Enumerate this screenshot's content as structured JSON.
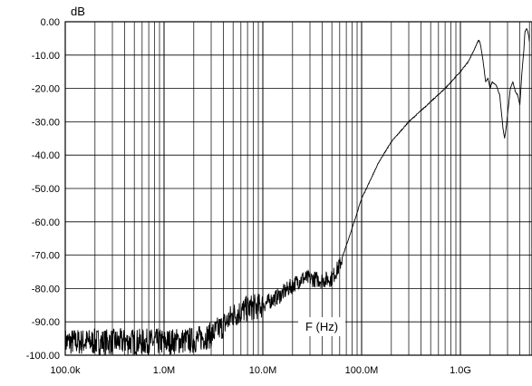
{
  "chart_data": {
    "type": "line",
    "ylabel": "dB",
    "xlabel": "F (Hz)",
    "xscale": "log",
    "xlim": [
      100000,
      5000000000
    ],
    "ylim": [
      -100,
      0
    ],
    "grid": true,
    "legend": "none",
    "line_color": "#000000",
    "x_tick_labels": [
      "100.0k",
      "1.0M",
      "10.0M",
      "100.0M",
      "1.0G"
    ],
    "x_tick_values": [
      100000,
      1000000,
      10000000,
      100000000,
      1000000000
    ],
    "y_tick_labels": [
      "0.00",
      "-10.00",
      "-20.00",
      "-30.00",
      "-40.00",
      "-50.00",
      "-60.00",
      "-70.00",
      "-80.00",
      "-90.00",
      "-100.00"
    ],
    "y_tick_values": [
      0,
      -10,
      -20,
      -30,
      -40,
      -50,
      -60,
      -70,
      -80,
      -90,
      -100
    ],
    "series": [
      {
        "x": [
          100000,
          200000,
          500000,
          1000000,
          2000000,
          3000000,
          4000000,
          5000000,
          7000000,
          10000000,
          15000000,
          20000000,
          25000000,
          30000000,
          40000000,
          50000000,
          60000000,
          80000000,
          100000000,
          150000000,
          200000000,
          300000000,
          500000000,
          700000000,
          1000000000,
          1200000000,
          1400000000,
          1500000000,
          1550000000,
          1600000000,
          1700000000,
          1800000000,
          1900000000,
          2000000000,
          2100000000,
          2300000000,
          2500000000,
          2700000000,
          2800000000,
          2900000000,
          3000000000,
          3200000000,
          3400000000,
          3600000000,
          3800000000,
          4000000000,
          4200000000,
          4400000000,
          4500000000,
          4700000000,
          4900000000,
          5000000000
        ],
        "y": [
          -96,
          -96,
          -96,
          -96,
          -95.5,
          -94,
          -91,
          -88,
          -86,
          -85,
          -82,
          -79,
          -77,
          -77,
          -77.5,
          -77,
          -73,
          -62,
          -53,
          -42,
          -36,
          -30,
          -24,
          -20,
          -15,
          -12,
          -8,
          -6,
          -5.5,
          -7,
          -12,
          -18,
          -17,
          -20,
          -18,
          -19,
          -22,
          -32,
          -35,
          -32,
          -28,
          -20,
          -18,
          -21,
          -22,
          -25,
          -15,
          -8,
          -3,
          -2,
          -4,
          -6
        ]
      }
    ]
  }
}
